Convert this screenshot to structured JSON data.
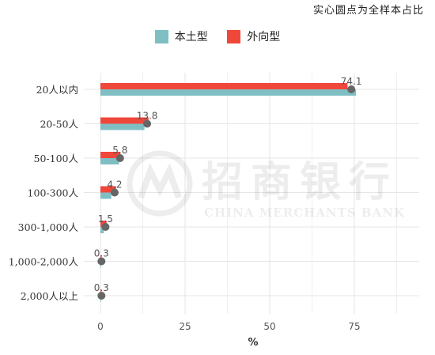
{
  "note": "实心圆点为全样本占比",
  "watermark": {
    "text_cn": "招商银行",
    "text_en": "CHINA MERCHANTS BANK"
  },
  "colors": {
    "domestic": "#7fbfc4",
    "foreign": "#f0473b",
    "dot": "#666666",
    "grid": "#e6e6e6"
  },
  "chart_data": {
    "type": "bar",
    "orientation": "horizontal",
    "categories": [
      "20人以内",
      "20-50人",
      "50-100人",
      "100-300人",
      "300-1,000人",
      "1,000-2,000人",
      "2,000人以上"
    ],
    "series": [
      {
        "name": "本土型",
        "values": [
          75.5,
          13.0,
          5.5,
          3.2,
          1.0,
          0.2,
          0.2
        ]
      },
      {
        "name": "外向型",
        "values": [
          73.0,
          14.2,
          5.9,
          4.6,
          1.8,
          0.3,
          0.3
        ]
      }
    ],
    "overall": {
      "values": [
        74.1,
        13.8,
        5.8,
        4.2,
        1.5,
        0.3,
        0.3
      ],
      "labels": [
        "74.1",
        "13.8",
        "5.8",
        "4.2",
        "1.5",
        "0.3",
        "0.3"
      ]
    },
    "x_ticks": [
      "0",
      "25",
      "50",
      "75"
    ],
    "xlabel": "%",
    "xlim": [
      0,
      92
    ],
    "grid": true,
    "legend_position": "top"
  }
}
